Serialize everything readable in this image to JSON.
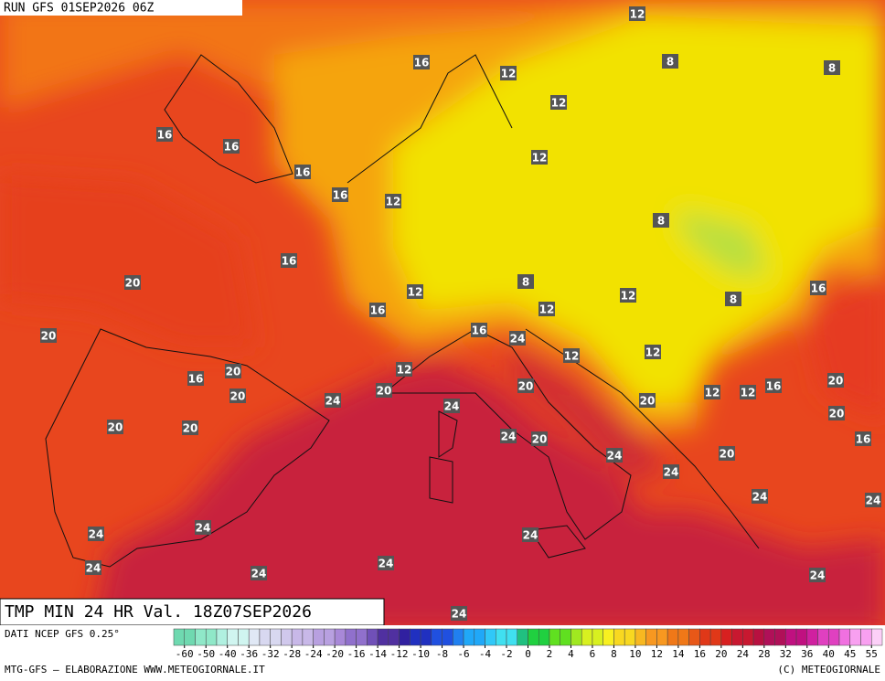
{
  "header": {
    "run": "RUN GFS 01SEP2026 06Z"
  },
  "contour_labels": [
    12,
    16,
    12,
    8,
    8,
    12,
    16,
    16,
    16,
    12,
    16,
    12,
    8,
    16,
    20,
    8,
    12,
    12,
    8,
    16,
    16,
    12,
    20,
    16,
    24,
    12,
    12,
    12,
    16,
    20,
    20,
    20,
    24,
    20,
    24,
    20,
    12,
    12,
    16,
    20,
    20,
    20,
    20,
    24,
    20,
    16,
    24,
    20,
    24,
    24,
    24,
    24,
    24,
    24,
    24,
    24,
    24,
    24,
    24
  ],
  "footer": {
    "title": "TMP MIN 24 HR Val. 18Z07SEP2026",
    "source": "DATI NCEP GFS 0.25°",
    "credit": "MTG-GFS — ELABORAZIONE WWW.METEOGIORNALE.IT",
    "copyright": "(C) METEOGIORNALE"
  },
  "colorbar": {
    "ticks": [
      -60,
      -50,
      -40,
      -36,
      -32,
      -28,
      -24,
      -20,
      -16,
      -14,
      -12,
      -10,
      -8,
      -6,
      -4,
      -2,
      0,
      2,
      4,
      6,
      8,
      10,
      12,
      14,
      16,
      20,
      24,
      28,
      32,
      36,
      40,
      45,
      55
    ]
  }
}
